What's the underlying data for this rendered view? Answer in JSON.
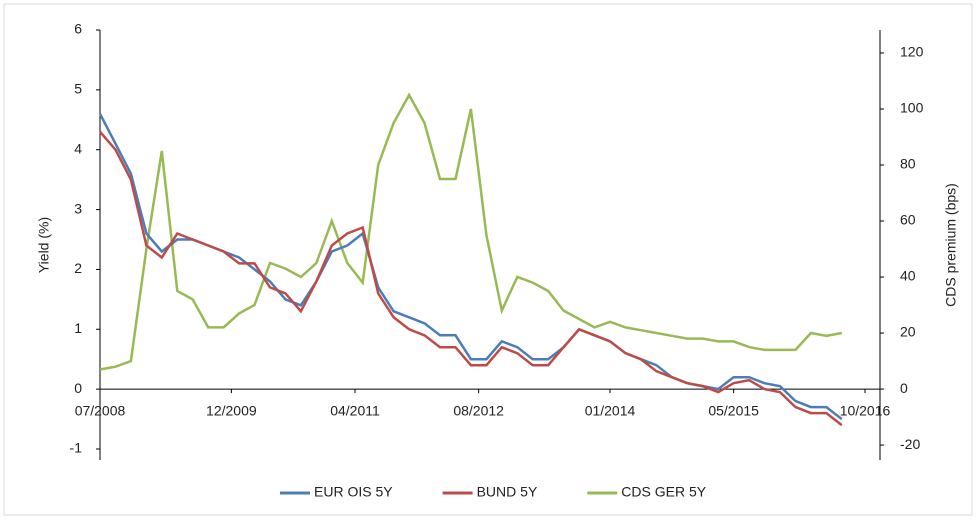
{
  "chart_data": {
    "type": "line",
    "y_label": "Yield (%)",
    "y2_label": "CDS premium (bps)",
    "x": [
      "07/2008",
      "09/2008",
      "11/2008",
      "01/2009",
      "03/2009",
      "05/2009",
      "07/2009",
      "09/2009",
      "11/2009",
      "01/2010",
      "03/2010",
      "05/2010",
      "07/2010",
      "09/2010",
      "11/2010",
      "01/2011",
      "03/2011",
      "05/2011",
      "07/2011",
      "09/2011",
      "11/2011",
      "01/2012",
      "03/2012",
      "05/2012",
      "07/2012",
      "09/2012",
      "11/2012",
      "01/2013",
      "03/2013",
      "05/2013",
      "07/2013",
      "09/2013",
      "11/2013",
      "01/2014",
      "03/2014",
      "05/2014",
      "07/2014",
      "09/2014",
      "11/2014",
      "01/2015",
      "03/2015",
      "05/2015",
      "07/2015",
      "09/2015",
      "11/2015",
      "01/2016",
      "03/2016",
      "05/2016",
      "07/2016"
    ],
    "xlim": [
      "07/2008",
      "10/2016"
    ],
    "xticks": [
      "07/2008",
      "12/2009",
      "04/2011",
      "08/2012",
      "01/2014",
      "05/2015",
      "10/2016"
    ],
    "ylim": [
      -1,
      6
    ],
    "yticks": [
      -1,
      0,
      1,
      2,
      3,
      4,
      5,
      6
    ],
    "y2lim": [
      -21.4,
      128.2
    ],
    "y2ticks": [
      -20,
      0,
      20,
      40,
      60,
      80,
      100,
      120
    ],
    "series": [
      {
        "name": "EUR OIS 5Y",
        "color": "#4a7ebb",
        "values": [
          4.6,
          4.1,
          3.6,
          2.6,
          2.3,
          2.5,
          2.5,
          2.4,
          2.3,
          2.2,
          2.0,
          1.8,
          1.5,
          1.4,
          1.8,
          2.3,
          2.4,
          2.6,
          1.7,
          1.3,
          1.2,
          1.1,
          0.9,
          0.9,
          0.5,
          0.5,
          0.8,
          0.7,
          0.5,
          0.5,
          0.7,
          1.0,
          0.9,
          0.8,
          0.6,
          0.5,
          0.4,
          0.2,
          0.1,
          0.05,
          0.0,
          0.2,
          0.2,
          0.1,
          0.05,
          -0.2,
          -0.3,
          -0.3,
          -0.5
        ]
      },
      {
        "name": "BUND 5Y",
        "color": "#be4b48",
        "values": [
          4.3,
          4.0,
          3.5,
          2.4,
          2.2,
          2.6,
          2.5,
          2.4,
          2.3,
          2.1,
          2.1,
          1.7,
          1.6,
          1.3,
          1.8,
          2.4,
          2.6,
          2.7,
          1.6,
          1.2,
          1.0,
          0.9,
          0.7,
          0.7,
          0.4,
          0.4,
          0.7,
          0.6,
          0.4,
          0.4,
          0.7,
          1.0,
          0.9,
          0.8,
          0.6,
          0.5,
          0.3,
          0.2,
          0.1,
          0.05,
          -0.05,
          0.1,
          0.15,
          0.0,
          -0.05,
          -0.3,
          -0.4,
          -0.4,
          -0.6
        ]
      },
      {
        "name": "CDS GER 5Y",
        "color": "#98b954",
        "axis": "y2",
        "values": [
          7,
          8,
          10,
          50,
          85,
          35,
          32,
          22,
          22,
          27,
          30,
          45,
          43,
          40,
          45,
          60,
          45,
          38,
          80,
          95,
          105,
          95,
          75,
          75,
          100,
          55,
          28,
          40,
          38,
          35,
          28,
          25,
          22,
          24,
          22,
          21,
          20,
          19,
          18,
          18,
          17,
          17,
          15,
          14,
          14,
          14,
          20,
          19,
          20
        ]
      }
    ]
  }
}
